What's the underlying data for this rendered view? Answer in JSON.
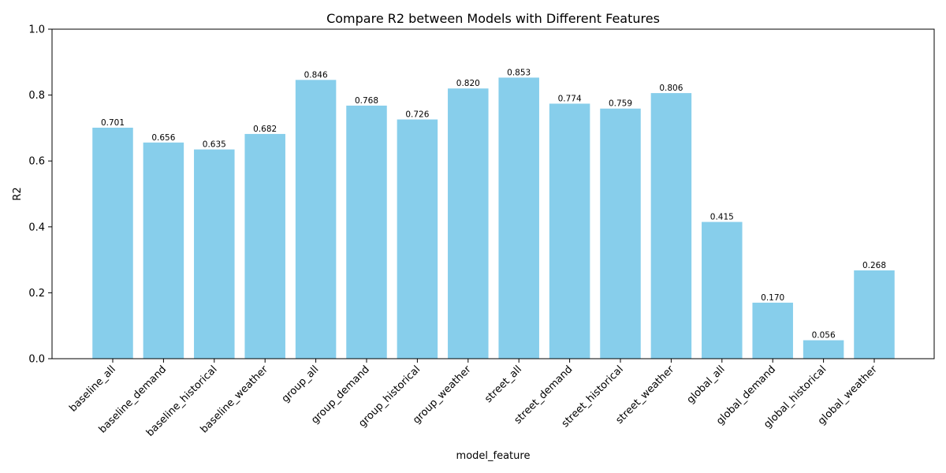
{
  "chart_data": {
    "type": "bar",
    "title": "Compare R2 between Models with Different Features",
    "xlabel": "model_feature",
    "ylabel": "R2",
    "ylim": [
      0,
      1.0
    ],
    "yticks": [
      "0.0",
      "0.2",
      "0.4",
      "0.6",
      "0.8",
      "1.0"
    ],
    "categories": [
      "baseline_all",
      "baseline_demand",
      "baseline_historical",
      "baseline_weather",
      "group_all",
      "group_demand",
      "group_historical",
      "group_weather",
      "street_all",
      "street_demand",
      "street_historical",
      "street_weather",
      "global_all",
      "global_demand",
      "global_historical",
      "global_weather"
    ],
    "values": [
      0.701,
      0.656,
      0.635,
      0.682,
      0.846,
      0.768,
      0.726,
      0.82,
      0.853,
      0.774,
      0.759,
      0.806,
      0.415,
      0.17,
      0.056,
      0.268
    ],
    "value_labels": [
      "0.701",
      "0.656",
      "0.635",
      "0.682",
      "0.846",
      "0.768",
      "0.726",
      "0.820",
      "0.853",
      "0.774",
      "0.759",
      "0.806",
      "0.415",
      "0.170",
      "0.056",
      "0.268"
    ],
    "bar_color": "#87ceeb",
    "grid": false
  }
}
